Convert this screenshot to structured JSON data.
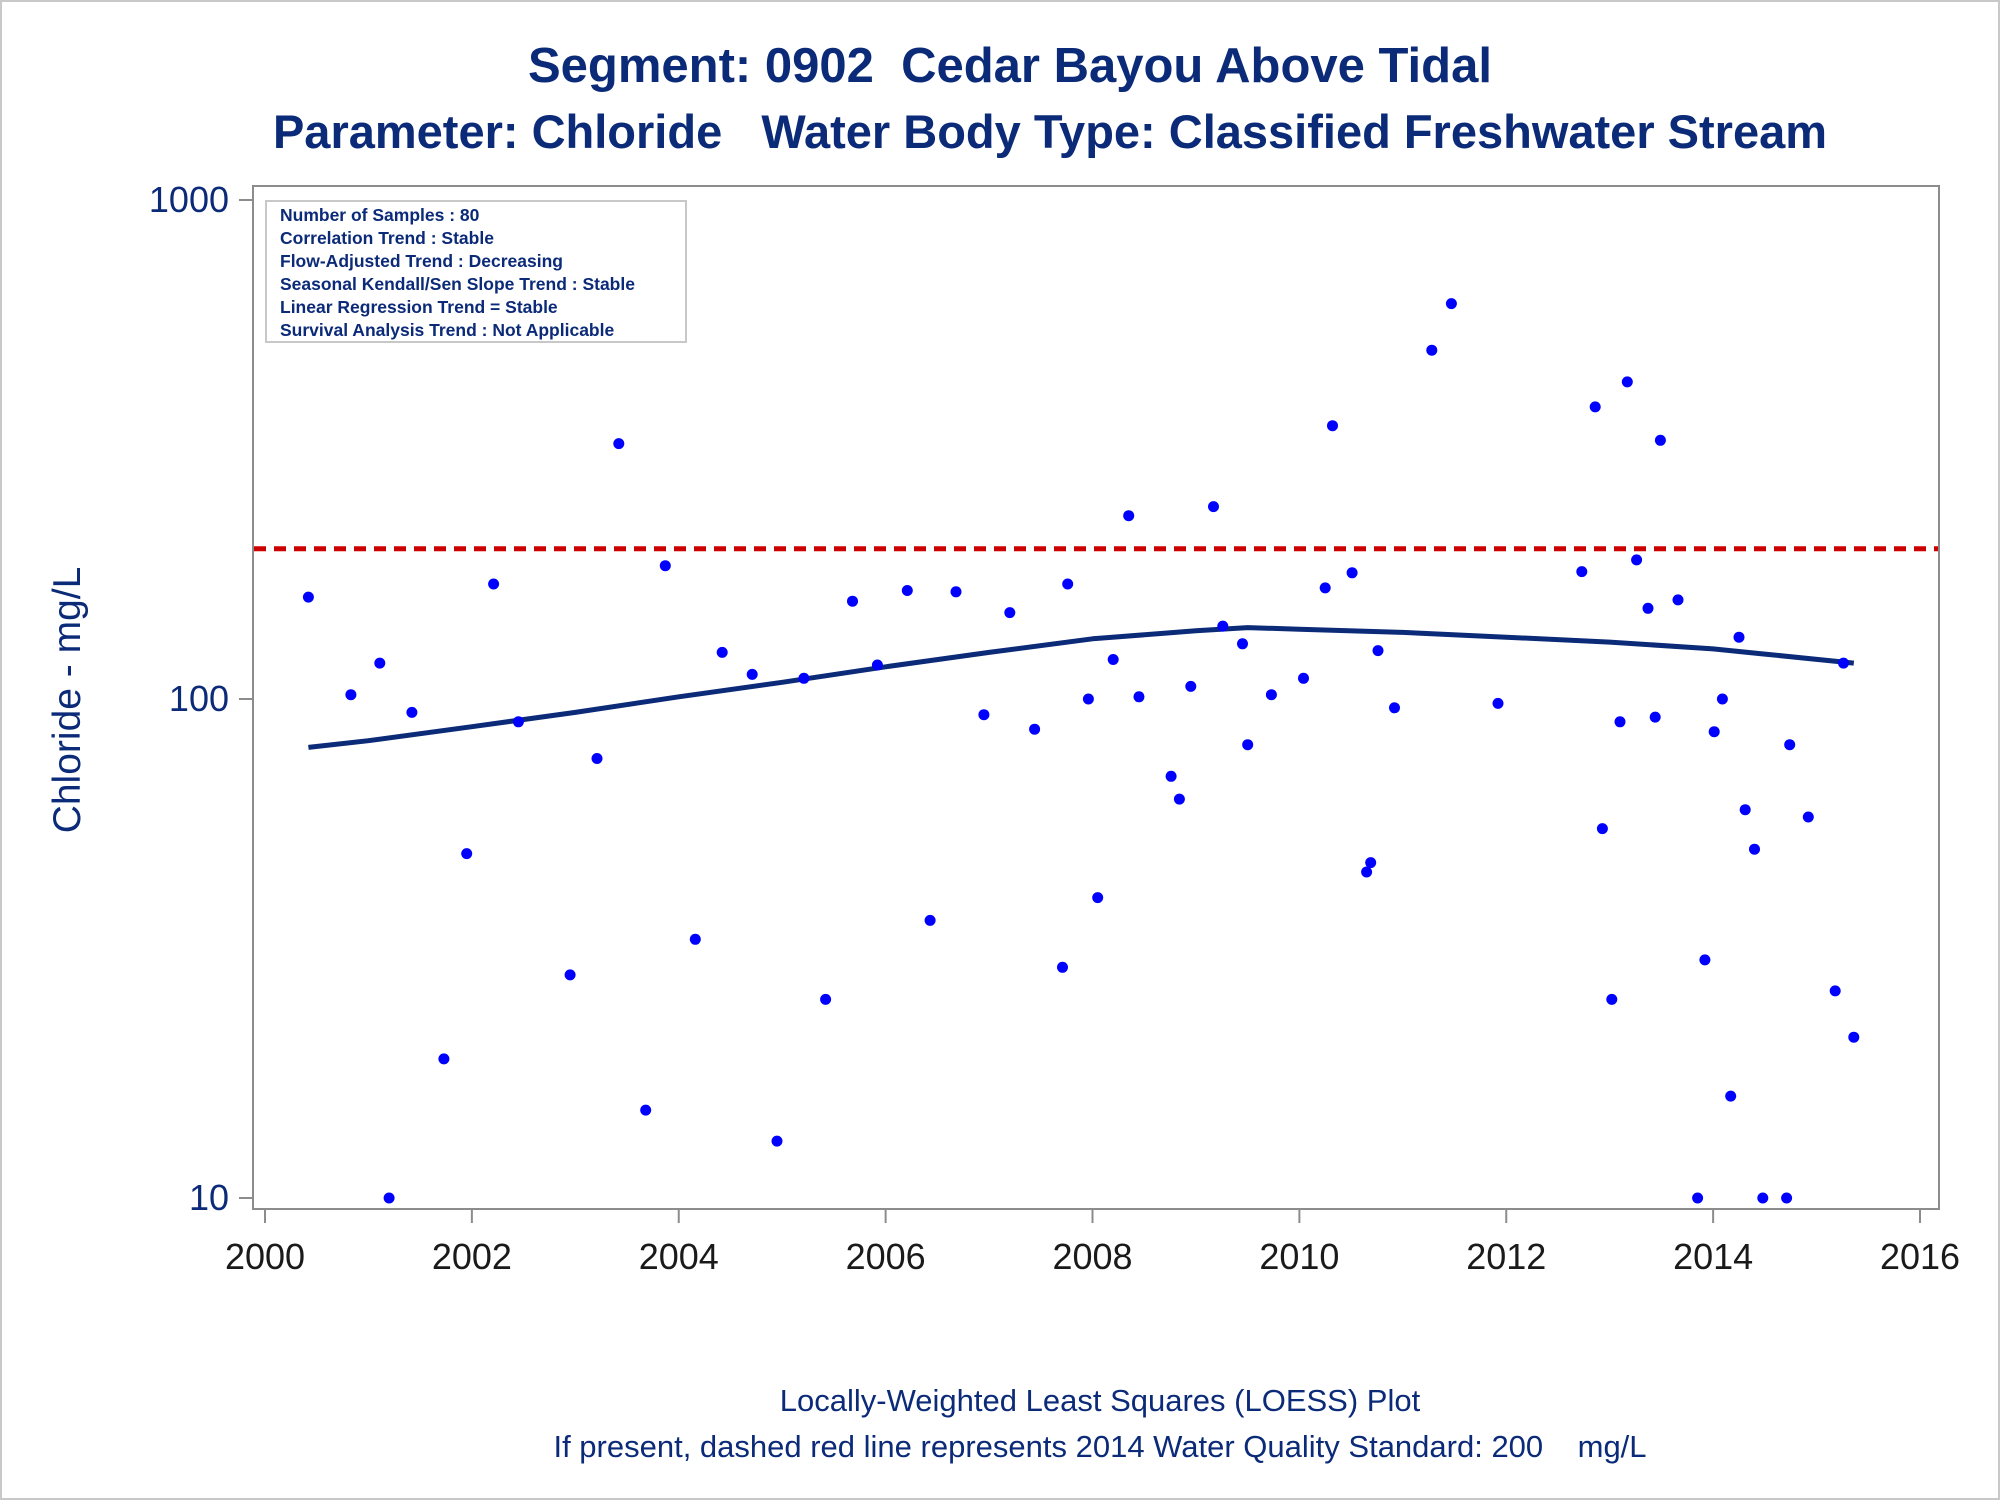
{
  "title_line1": "Segment: 0902  Cedar Bayou Above Tidal",
  "title_line2": "Parameter: Chloride   Water Body Type: Classified Freshwater Stream",
  "footnote_line1": "Locally-Weighted Least Squares (LOESS) Plot",
  "footnote_line2": "If present, dashed red line represents 2014 Water Quality Standard: 200    mg/L",
  "inset_lines": [
    "Number of Samples : 80",
    "Correlation Trend : Stable",
    "Flow-Adjusted Trend : Decreasing",
    "Seasonal Kendall/Sen Slope Trend : Stable",
    "Linear Regression Trend = Stable",
    "Survival Analysis Trend : Not Applicable"
  ],
  "colors": {
    "text": "#0b2a78",
    "points": "#0000ff",
    "loess": "#0b2a78",
    "standard_line": "#cc0000",
    "axis": "#8c8c8c"
  },
  "chart_data": {
    "type": "scatter",
    "title": "Segment: 0902  Cedar Bayou Above Tidal",
    "subtitle": "Parameter: Chloride   Water Body Type: Classified Freshwater Stream",
    "xlabel": "",
    "ylabel": "Chloride - mg/L",
    "xscale": "time",
    "yscale": "log",
    "xlim": [
      2000.0,
      2016.0
    ],
    "ylim": [
      10,
      1000
    ],
    "xticks": [
      2000,
      2002,
      2004,
      2006,
      2008,
      2010,
      2012,
      2014,
      2016
    ],
    "yticks": [
      10,
      100,
      1000
    ],
    "grid": false,
    "standard_value": 200,
    "points": [
      [
        2000.42,
        160
      ],
      [
        2000.83,
        102
      ],
      [
        2001.11,
        118
      ],
      [
        2001.2,
        10
      ],
      [
        2001.42,
        94
      ],
      [
        2001.73,
        19
      ],
      [
        2001.95,
        49
      ],
      [
        2002.21,
        170
      ],
      [
        2002.45,
        90
      ],
      [
        2002.95,
        28
      ],
      [
        2003.21,
        76
      ],
      [
        2003.42,
        325
      ],
      [
        2003.68,
        15
      ],
      [
        2003.87,
        185
      ],
      [
        2004.16,
        33
      ],
      [
        2004.42,
        124
      ],
      [
        2004.71,
        112
      ],
      [
        2004.95,
        13
      ],
      [
        2005.21,
        110
      ],
      [
        2005.42,
        25
      ],
      [
        2005.68,
        157
      ],
      [
        2005.92,
        117
      ],
      [
        2006.21,
        165
      ],
      [
        2006.43,
        36
      ],
      [
        2006.68,
        164
      ],
      [
        2006.95,
        93
      ],
      [
        2007.2,
        149
      ],
      [
        2007.44,
        87
      ],
      [
        2007.71,
        29
      ],
      [
        2007.76,
        170
      ],
      [
        2007.96,
        100
      ],
      [
        2008.05,
        40
      ],
      [
        2008.2,
        120
      ],
      [
        2008.35,
        233
      ],
      [
        2008.45,
        101
      ],
      [
        2008.76,
        70
      ],
      [
        2008.84,
        63
      ],
      [
        2008.95,
        106
      ],
      [
        2009.17,
        243
      ],
      [
        2009.26,
        140
      ],
      [
        2009.45,
        129
      ],
      [
        2009.5,
        81
      ],
      [
        2009.73,
        102
      ],
      [
        2010.04,
        110
      ],
      [
        2010.25,
        167
      ],
      [
        2010.32,
        353
      ],
      [
        2010.51,
        179
      ],
      [
        2010.65,
        45
      ],
      [
        2010.69,
        47
      ],
      [
        2010.76,
        125
      ],
      [
        2010.92,
        96
      ],
      [
        2011.28,
        500
      ],
      [
        2011.47,
        620
      ],
      [
        2011.92,
        98
      ],
      [
        2012.73,
        180
      ],
      [
        2012.86,
        385
      ],
      [
        2012.93,
        55
      ],
      [
        2013.02,
        25
      ],
      [
        2013.1,
        90
      ],
      [
        2013.17,
        432
      ],
      [
        2013.26,
        190
      ],
      [
        2013.37,
        152
      ],
      [
        2013.44,
        92
      ],
      [
        2013.49,
        330
      ],
      [
        2013.66,
        158
      ],
      [
        2013.85,
        10
      ],
      [
        2013.92,
        30
      ],
      [
        2014.01,
        86
      ],
      [
        2014.09,
        100
      ],
      [
        2014.17,
        16
      ],
      [
        2014.25,
        133
      ],
      [
        2014.31,
        60
      ],
      [
        2014.4,
        50
      ],
      [
        2014.48,
        10
      ],
      [
        2014.71,
        10
      ],
      [
        2014.74,
        81
      ],
      [
        2014.92,
        58
      ],
      [
        2015.18,
        26
      ],
      [
        2015.26,
        118
      ],
      [
        2015.36,
        21
      ]
    ],
    "loess": [
      [
        2000.42,
        80
      ],
      [
        2001.0,
        82.5
      ],
      [
        2002.0,
        88
      ],
      [
        2003.0,
        94
      ],
      [
        2004.0,
        101
      ],
      [
        2005.0,
        108
      ],
      [
        2006.0,
        116
      ],
      [
        2007.0,
        124
      ],
      [
        2008.0,
        132
      ],
      [
        2009.0,
        137
      ],
      [
        2009.5,
        139
      ],
      [
        2010.0,
        138
      ],
      [
        2011.0,
        136
      ],
      [
        2012.0,
        133
      ],
      [
        2013.0,
        130
      ],
      [
        2014.0,
        126
      ],
      [
        2014.5,
        123
      ],
      [
        2015.36,
        118
      ]
    ]
  }
}
